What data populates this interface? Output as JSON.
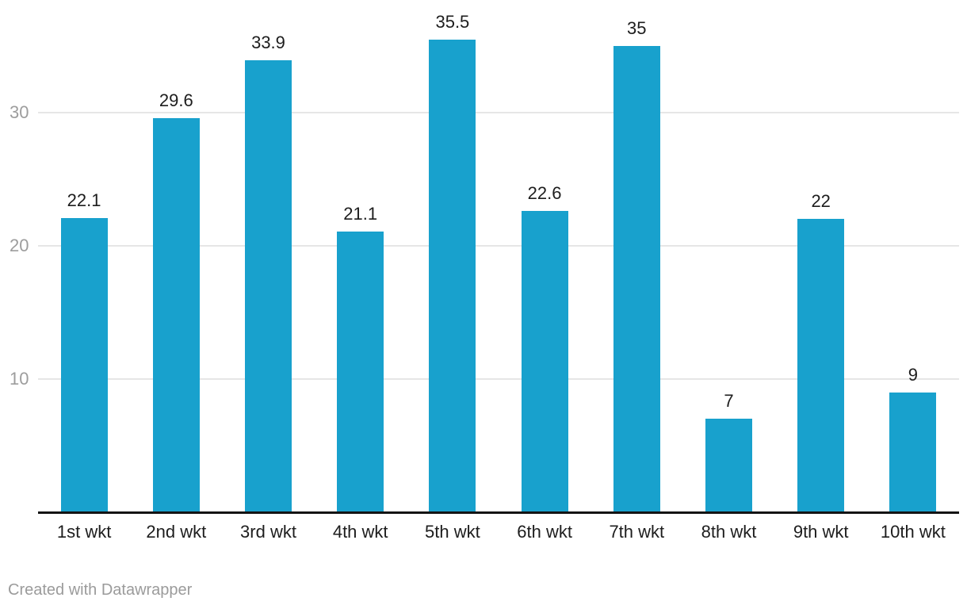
{
  "chart_data": {
    "type": "bar",
    "title": "",
    "xlabel": "",
    "ylabel": "",
    "categories": [
      "1st wkt",
      "2nd wkt",
      "3rd wkt",
      "4th wkt",
      "5th wkt",
      "6th wkt",
      "7th wkt",
      "8th wkt",
      "9th wkt",
      "10th wkt"
    ],
    "values": [
      22.1,
      29.6,
      33.9,
      21.1,
      35.5,
      22.6,
      35,
      7,
      22,
      9
    ],
    "value_labels": [
      "22.1",
      "29.6",
      "33.9",
      "21.1",
      "35.5",
      "22.6",
      "35",
      "7",
      "22",
      "9"
    ],
    "y_ticks": [
      10,
      20,
      30
    ],
    "y_tick_labels": [
      "10",
      "20",
      "30"
    ],
    "ylim": [
      0,
      38.5
    ],
    "grid": true,
    "legend": false,
    "colors": {
      "bar": "#18a1cd",
      "value_label": "#1d1d1d",
      "category_label": "#1d1d1d",
      "tick_label": "#9d9d9d",
      "gridline": "#e6e6e6",
      "axis_line": "#141414"
    }
  },
  "footer": {
    "attribution": "Created with Datawrapper"
  }
}
